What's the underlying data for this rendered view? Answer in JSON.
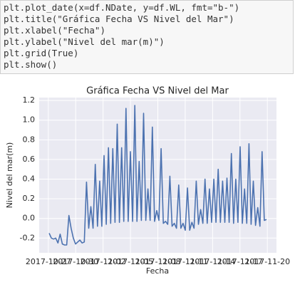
{
  "code": {
    "lines": [
      "plt.plot_date(x=df.NDate, y=df.WL, fmt=\"b-\")",
      "plt.title(\"Gráfica Fecha VS Nivel del Mar\")",
      "plt.xlabel(\"Fecha\")",
      "plt.ylabel(\"Nivel del mar(m)\")",
      "plt.grid(True)",
      "plt.show()"
    ]
  },
  "chart_data": {
    "type": "line",
    "title": "Gráfica Fecha VS Nivel del Mar",
    "x_label": "Fecha",
    "y_label": "Nivel del mar(m)",
    "xlim": [
      "2017-10-26",
      "2017-11-21"
    ],
    "xticks": [
      "2017-10-27",
      "2017-10-30",
      "2017-11-02",
      "2017-11-05",
      "2017-11-08",
      "2017-11-11",
      "2017-11-14",
      "2017-11-17",
      "2017-11-20"
    ],
    "ylim": [
      -0.35,
      1.23
    ],
    "yticks": [
      -0.2,
      0.0,
      0.2,
      0.4,
      0.6,
      0.8,
      1.0,
      1.2
    ],
    "grid": true,
    "series": [
      {
        "name": "WL",
        "color": "#4c72b0",
        "values": [
          -0.15,
          -0.2,
          -0.21,
          -0.2,
          -0.25,
          -0.16,
          -0.26,
          -0.27,
          -0.27,
          0.03,
          -0.1,
          -0.2,
          -0.26,
          -0.24,
          -0.22,
          -0.25,
          -0.24,
          0.37,
          -0.1,
          0.12,
          -0.1,
          0.55,
          -0.08,
          0.38,
          -0.08,
          0.64,
          -0.06,
          0.72,
          -0.05,
          0.71,
          -0.04,
          0.96,
          -0.04,
          0.72,
          -0.03,
          1.12,
          -0.03,
          0.68,
          -0.03,
          1.15,
          -0.03,
          0.58,
          -0.02,
          1.07,
          -0.02,
          0.3,
          -0.02,
          0.93,
          -0.03,
          0.08,
          -0.02,
          0.71,
          -0.05,
          -0.03,
          -0.06,
          0.43,
          -0.08,
          -0.05,
          -0.1,
          0.34,
          -0.1,
          -0.05,
          -0.12,
          0.31,
          -0.12,
          -0.04,
          -0.1,
          0.38,
          -0.06,
          0.09,
          -0.05,
          0.4,
          -0.05,
          0.3,
          -0.04,
          0.4,
          -0.04,
          0.5,
          -0.04,
          0.38,
          -0.04,
          0.41,
          -0.04,
          0.66,
          -0.05,
          0.4,
          -0.04,
          0.73,
          -0.05,
          0.3,
          -0.05,
          0.76,
          -0.06,
          0.38,
          -0.07,
          0.11,
          -0.08,
          0.68,
          -0.02,
          -0.01
        ]
      }
    ]
  }
}
